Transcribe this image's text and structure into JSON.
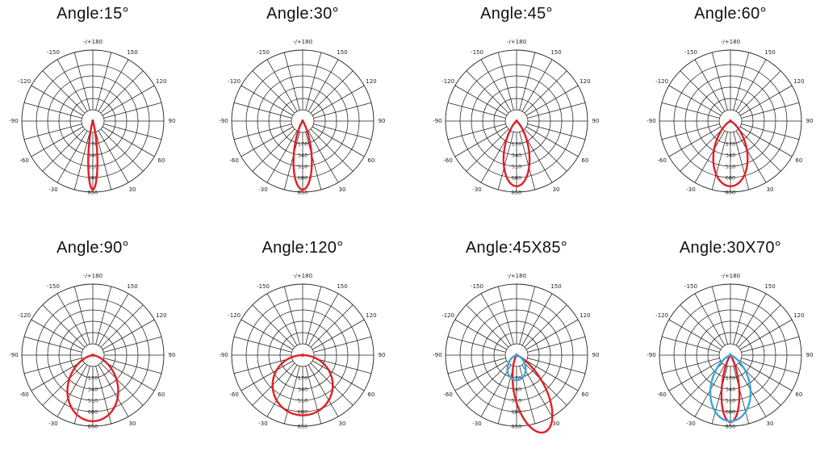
{
  "chart_data": [
    {
      "type": "polar",
      "title": "Angle:15°",
      "angle_labels": [
        "-/+180",
        "150",
        "120",
        "90",
        "60",
        "30",
        "-30",
        "-60",
        "-90",
        "-120",
        "-150"
      ],
      "radial_labels": [
        "0",
        "170",
        "340",
        "510",
        "680",
        "850"
      ],
      "rmax": 850,
      "series": [
        {
          "color": "#e31e24",
          "beam_angle_deg": 15,
          "peak": 820
        }
      ]
    },
    {
      "type": "polar",
      "title": "Angle:30°",
      "angle_labels": [
        "-/+180",
        "150",
        "120",
        "90",
        "60",
        "30",
        "-30",
        "-60",
        "-90",
        "-120",
        "-150"
      ],
      "radial_labels": [
        "0",
        "170",
        "340",
        "510",
        "680",
        "850"
      ],
      "rmax": 850,
      "series": [
        {
          "color": "#e31e24",
          "beam_angle_deg": 30,
          "peak": 820
        }
      ]
    },
    {
      "type": "polar",
      "title": "Angle:45°",
      "angle_labels": [
        "-/+180",
        "150",
        "120",
        "90",
        "60",
        "30",
        "-30",
        "-60",
        "-90",
        "-120",
        "-150"
      ],
      "radial_labels": [
        "0",
        "170",
        "340",
        "510",
        "680",
        "850"
      ],
      "rmax": 850,
      "series": [
        {
          "color": "#e31e24",
          "beam_angle_deg": 45,
          "peak": 780
        }
      ]
    },
    {
      "type": "polar",
      "title": "Angle:60°",
      "angle_labels": [
        "-/+180",
        "150",
        "120",
        "90",
        "60",
        "30",
        "-30",
        "-60",
        "-90",
        "-120",
        "-150"
      ],
      "radial_labels": [
        "0",
        "170",
        "340",
        "510",
        "680",
        "850"
      ],
      "rmax": 850,
      "series": [
        {
          "color": "#e31e24",
          "beam_angle_deg": 60,
          "peak": 780
        }
      ]
    },
    {
      "type": "polar",
      "title": "Angle:90°",
      "angle_labels": [
        "-/+180",
        "150",
        "120",
        "90",
        "60",
        "30",
        "-30",
        "-60",
        "-90",
        "-120",
        "-150"
      ],
      "radial_labels": [
        "0",
        "170",
        "340",
        "510",
        "680",
        "850"
      ],
      "rmax": 850,
      "series": [
        {
          "color": "#e31e24",
          "beam_angle_deg": 90,
          "peak": 790
        }
      ]
    },
    {
      "type": "polar",
      "title": "Angle:120°",
      "angle_labels": [
        "-/+180",
        "150",
        "120",
        "90",
        "60",
        "30",
        "-30",
        "-60",
        "-90",
        "-120",
        "-150"
      ],
      "radial_labels": [
        "0",
        "170",
        "340",
        "510",
        "680",
        "850"
      ],
      "rmax": 850,
      "series": [
        {
          "color": "#e31e24",
          "beam_angle_deg": 120,
          "peak": 720
        }
      ]
    },
    {
      "type": "polar",
      "title": "Angle:45X85°",
      "angle_labels": [
        "-/+180",
        "150",
        "120",
        "90",
        "60",
        "30",
        "-30",
        "-60",
        "-90",
        "-120",
        "-150"
      ],
      "radial_labels": [
        "0",
        "170",
        "340",
        "510",
        "680",
        "850"
      ],
      "rmax": 850,
      "series": [
        {
          "color": "#e31e24",
          "beam_angle_deg": 45,
          "peak": 980,
          "tilt_deg": 20
        },
        {
          "color": "#3aa6dd",
          "beam_angle_deg": 85,
          "peak": 300,
          "tilt_deg": 0
        }
      ]
    },
    {
      "type": "polar",
      "title": "Angle:30X70°",
      "angle_labels": [
        "-/+180",
        "150",
        "120",
        "90",
        "60",
        "30",
        "-30",
        "-60",
        "-90",
        "-120",
        "-150"
      ],
      "radial_labels": [
        "0",
        "170",
        "340",
        "510",
        "680",
        "850"
      ],
      "rmax": 850,
      "series": [
        {
          "color": "#e31e24",
          "beam_angle_deg": 30,
          "peak": 800,
          "tilt_deg": 0
        },
        {
          "color": "#3aa6dd",
          "beam_angle_deg": 70,
          "peak": 790,
          "tilt_deg": 0
        }
      ]
    }
  ]
}
